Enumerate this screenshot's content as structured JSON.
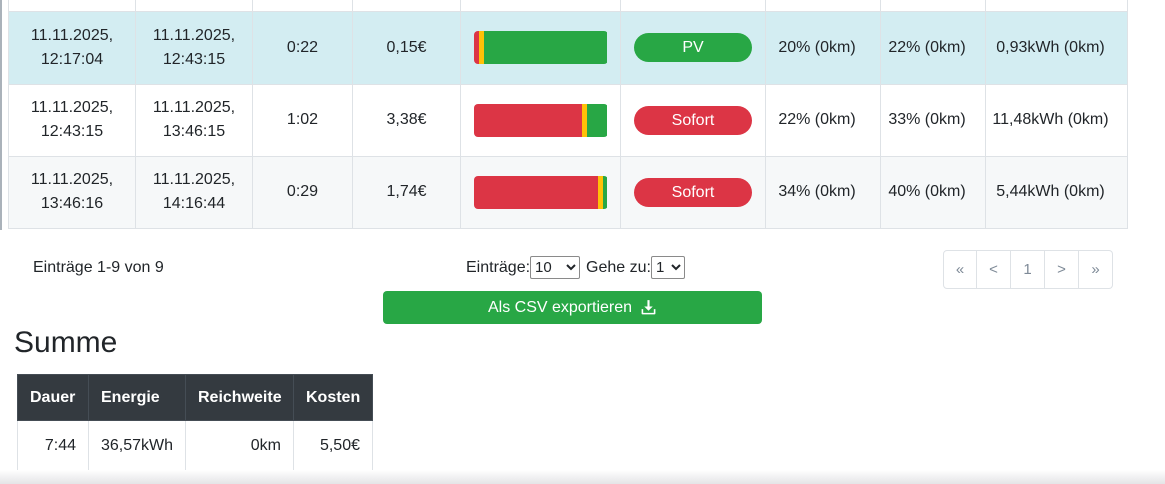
{
  "table": {
    "rows": [
      {
        "start_date": "11.11.2025,",
        "start_time": "12:17:04",
        "end_date": "11.11.2025,",
        "end_time": "12:43:15",
        "duration": "0:22",
        "cost": "0,15€",
        "bar": {
          "red_pct": 4,
          "yellow_pct": 4,
          "green_pct": 92
        },
        "mode": {
          "label": "PV",
          "color": "#28a745"
        },
        "soc_start": "20% (0km)",
        "soc_end": "22% (0km)",
        "energy": "0,93kWh (0km)"
      },
      {
        "start_date": "11.11.2025,",
        "start_time": "12:43:15",
        "end_date": "11.11.2025,",
        "end_time": "13:46:15",
        "duration": "1:02",
        "cost": "3,38€",
        "bar": {
          "red_pct": 81,
          "yellow_pct": 3.5,
          "green_pct": 15.5
        },
        "mode": {
          "label": "Sofort",
          "color": "#dc3545"
        },
        "soc_start": "22% (0km)",
        "soc_end": "33% (0km)",
        "energy": "11,48kWh (0km)"
      },
      {
        "start_date": "11.11.2025,",
        "start_time": "13:46:16",
        "end_date": "11.11.2025,",
        "end_time": "14:16:44",
        "duration": "0:29",
        "cost": "1,74€",
        "bar": {
          "red_pct": 93,
          "yellow_pct": 3.5,
          "green_pct": 3.5
        },
        "mode": {
          "label": "Sofort",
          "color": "#dc3545"
        },
        "soc_start": "34% (0km)",
        "soc_end": "40% (0km)",
        "energy": "5,44kWh (0km)"
      }
    ]
  },
  "pagination": {
    "summary": "Einträge 1-9 von 9",
    "page_size_label": "Einträge:",
    "page_size_value": "10",
    "goto_label": "Gehe zu:",
    "goto_value": "1",
    "buttons": [
      "«",
      "<",
      "1",
      ">",
      "»"
    ]
  },
  "export_button": {
    "label": "Als CSV exportieren"
  },
  "summary_section": {
    "title": "Summe",
    "headers": [
      "Dauer",
      "Energie",
      "Reichweite",
      "Kosten"
    ],
    "values": [
      "7:44",
      "36,57kWh",
      "0km",
      "5,50€"
    ]
  },
  "colors": {
    "green": "#28a745",
    "red": "#dc3545",
    "yellow": "#ffc107",
    "highlight_row": "#d3edf2",
    "dark_header": "#343a40"
  }
}
